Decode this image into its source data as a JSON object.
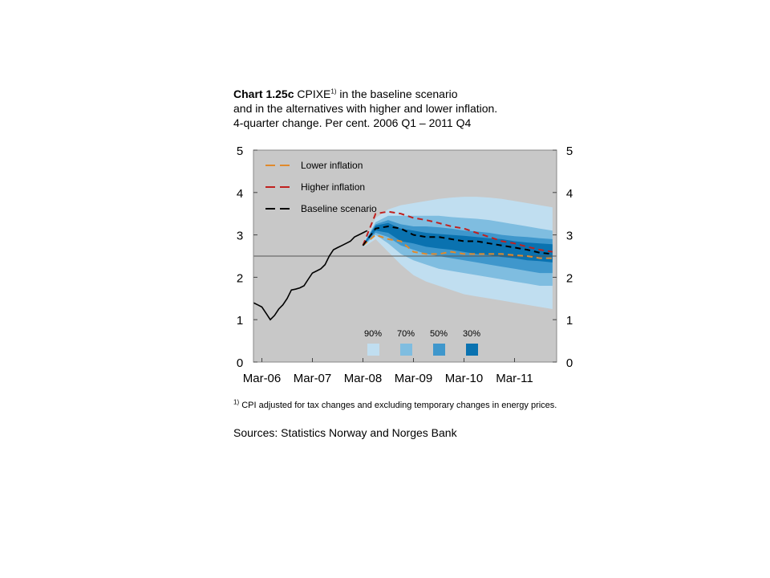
{
  "title": {
    "label": "Chart 1.25c",
    "main": "CPIXE",
    "marker": "1)",
    "rest": " in the baseline scenario",
    "line2": "and in the alternatives with higher and lower inflation.",
    "line3": "4-quarter change. Per cent. 2006 Q1 – 2011 Q4"
  },
  "footnote": {
    "marker": "1)",
    "text": "CPI adjusted for tax changes and excluding temporary changes in energy prices."
  },
  "sources": "Sources: Statistics Norway and Norges Bank",
  "colors": {
    "plot_bg": "#c8c8c8",
    "band_90": "#c0def0",
    "band_70": "#7fbde0",
    "band_50": "#3f97cc",
    "band_30": "#0a72b0",
    "lower": "#e08a2c",
    "higher": "#c0201e",
    "baseline": "#000000",
    "history": "#000000",
    "target_line": "#555555"
  },
  "chart_data": {
    "type": "line",
    "x_tick_labels": [
      "Mar-06",
      "Mar-07",
      "Mar-08",
      "Mar-09",
      "Mar-10",
      "Mar-11"
    ],
    "y_ticks": [
      0,
      1,
      2,
      3,
      4,
      5
    ],
    "ylim": [
      0,
      5
    ],
    "reference_line": 2.5,
    "history": {
      "name": "",
      "x": [
        "2006-01",
        "2006-02",
        "2006-03",
        "2006-04",
        "2006-05",
        "2006-06",
        "2006-07",
        "2006-08",
        "2006-09",
        "2006-10",
        "2006-11",
        "2006-12",
        "2007-01",
        "2007-02",
        "2007-03",
        "2007-04",
        "2007-05",
        "2007-06",
        "2007-07",
        "2007-08",
        "2007-09",
        "2007-10",
        "2007-11",
        "2007-12",
        "2008-01",
        "2008-02",
        "2008-03",
        "2008-04"
      ],
      "values": [
        1.4,
        1.35,
        1.3,
        1.15,
        1.0,
        1.1,
        1.25,
        1.35,
        1.5,
        1.7,
        1.72,
        1.75,
        1.8,
        1.95,
        2.1,
        2.15,
        2.2,
        2.3,
        2.5,
        2.65,
        2.7,
        2.75,
        2.8,
        2.85,
        2.95,
        3.0,
        3.05,
        3.1
      ]
    },
    "x_axis_note": "Tick labels mark quarters; history is drawn at observed dates",
    "fan_dates": [
      "2008-03",
      "2008-06",
      "2008-09",
      "2008-12",
      "2009-03",
      "2009-06",
      "2009-09",
      "2009-12",
      "2010-03",
      "2010-06",
      "2010-09",
      "2010-12",
      "2011-03",
      "2011-06",
      "2011-09",
      "2011-12"
    ],
    "fan_bands": [
      {
        "name": "90%",
        "upper": [
          2.8,
          3.4,
          3.6,
          3.7,
          3.75,
          3.8,
          3.85,
          3.88,
          3.9,
          3.9,
          3.88,
          3.85,
          3.8,
          3.75,
          3.7,
          3.65
        ],
        "lower": [
          2.7,
          2.9,
          2.6,
          2.3,
          2.05,
          1.9,
          1.8,
          1.7,
          1.6,
          1.55,
          1.5,
          1.45,
          1.4,
          1.35,
          1.3,
          1.25
        ]
      },
      {
        "name": "70%",
        "upper": [
          2.78,
          3.3,
          3.45,
          3.45,
          3.45,
          3.45,
          3.45,
          3.42,
          3.4,
          3.38,
          3.35,
          3.3,
          3.25,
          3.2,
          3.15,
          3.1
        ],
        "lower": [
          2.72,
          3.0,
          2.8,
          2.55,
          2.4,
          2.3,
          2.2,
          2.15,
          2.1,
          2.05,
          2.0,
          1.95,
          1.9,
          1.85,
          1.8,
          1.8
        ]
      },
      {
        "name": "50%",
        "upper": [
          2.77,
          3.25,
          3.35,
          3.25,
          3.2,
          3.2,
          3.18,
          3.15,
          3.1,
          3.08,
          3.05,
          3.0,
          2.97,
          2.95,
          2.92,
          2.9
        ],
        "lower": [
          2.73,
          3.05,
          2.95,
          2.75,
          2.65,
          2.55,
          2.5,
          2.45,
          2.4,
          2.35,
          2.3,
          2.25,
          2.2,
          2.15,
          2.1,
          2.1
        ]
      },
      {
        "name": "30%",
        "upper": [
          2.76,
          3.22,
          3.28,
          3.15,
          3.1,
          3.05,
          3.02,
          3.0,
          2.98,
          2.95,
          2.92,
          2.9,
          2.85,
          2.82,
          2.8,
          2.78
        ],
        "lower": [
          2.74,
          3.1,
          3.05,
          2.85,
          2.8,
          2.72,
          2.68,
          2.65,
          2.6,
          2.55,
          2.52,
          2.48,
          2.45,
          2.4,
          2.38,
          2.35
        ]
      }
    ],
    "series": [
      {
        "name": "Lower inflation",
        "x": [
          "2008-03",
          "2008-06",
          "2008-09",
          "2008-12",
          "2009-03",
          "2009-06",
          "2009-09",
          "2009-12",
          "2010-03",
          "2010-06",
          "2010-09",
          "2010-12",
          "2011-03",
          "2011-06",
          "2011-09",
          "2011-12"
        ],
        "values": [
          2.75,
          3.0,
          2.9,
          2.85,
          2.6,
          2.55,
          2.55,
          2.6,
          2.55,
          2.55,
          2.55,
          2.55,
          2.52,
          2.5,
          2.45,
          2.45
        ]
      },
      {
        "name": "Higher inflation",
        "x": [
          "2008-03",
          "2008-06",
          "2008-09",
          "2008-12",
          "2009-03",
          "2009-06",
          "2009-09",
          "2009-12",
          "2010-03",
          "2010-06",
          "2010-09",
          "2010-12",
          "2011-03",
          "2011-06",
          "2011-09",
          "2011-12"
        ],
        "values": [
          2.75,
          3.5,
          3.55,
          3.5,
          3.4,
          3.35,
          3.28,
          3.2,
          3.15,
          3.05,
          2.95,
          2.85,
          2.8,
          2.72,
          2.65,
          2.6
        ]
      },
      {
        "name": "Baseline scenario",
        "x": [
          "2008-03",
          "2008-06",
          "2008-09",
          "2008-12",
          "2009-03",
          "2009-06",
          "2009-09",
          "2009-12",
          "2010-03",
          "2010-06",
          "2010-09",
          "2010-12",
          "2011-03",
          "2011-06",
          "2011-09",
          "2011-12"
        ],
        "values": [
          2.75,
          3.15,
          3.2,
          3.15,
          3.0,
          2.95,
          2.95,
          2.9,
          2.85,
          2.85,
          2.8,
          2.75,
          2.7,
          2.65,
          2.58,
          2.55
        ]
      }
    ],
    "legend": {
      "placement": "top-left",
      "entries": [
        "Lower inflation",
        "Higher inflation",
        "Baseline scenario"
      ]
    },
    "band_legend": {
      "placement": "bottom-center",
      "labels": [
        "90%",
        "70%",
        "50%",
        "30%"
      ]
    }
  }
}
